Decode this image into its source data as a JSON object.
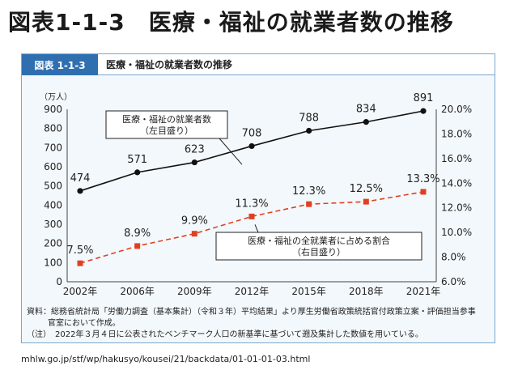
{
  "page_title": "図表1-1-3　医療・福祉の就業者数の推移",
  "figure": {
    "tag": "図表 1-1-3",
    "title": "医療・福祉の就業者数の推移"
  },
  "notes": {
    "source_line1": "資料：総務省統計局「労働力調査（基本集計）（令和３年）平均結果」より厚生労働省政策統括官付政策立案・評価担当参事",
    "source_line2": "官室において作成。",
    "note_line": "（注）　2022年３月４日に公表されたベンチマーク人口の新基準に基づいて遡及集計した数値を用いている。"
  },
  "url": "mhlw.go.jp/stf/wp/hakusyo/kousei/21/backdata/01-01-01-03.html",
  "colors": {
    "accent": "#2f6fb0",
    "series1": "#111111",
    "series2": "#e04020"
  },
  "chart_data": {
    "type": "line",
    "categories": [
      "2002年",
      "2006年",
      "2009年",
      "2012年",
      "2015年",
      "2018年",
      "2021年"
    ],
    "y_unit_label": "（万人）",
    "ylim_left": [
      0,
      900
    ],
    "yticks_left": [
      "0",
      "100",
      "200",
      "300",
      "400",
      "500",
      "600",
      "700",
      "800",
      "900"
    ],
    "ylim_right": [
      6.0,
      20.0
    ],
    "yticks_right": [
      "6.0%",
      "8.0%",
      "10.0%",
      "12.0%",
      "14.0%",
      "16.0%",
      "18.0%",
      "20.0%"
    ],
    "series": [
      {
        "name": "医療・福祉の就業者数",
        "name_line1": "医療・福祉の就業者数",
        "name_line2": "（左目盛り）",
        "axis": "left",
        "values": [
          474,
          571,
          623,
          708,
          788,
          834,
          891
        ],
        "labels": [
          "474",
          "571",
          "623",
          "708",
          "788",
          "834",
          "891"
        ]
      },
      {
        "name": "医療・福祉の全就業者に占める割合",
        "name_line1": "医療・福祉の全就業者に占める割合",
        "name_line2": "（右目盛り）",
        "axis": "right",
        "values": [
          7.5,
          8.9,
          9.9,
          11.3,
          12.3,
          12.5,
          13.3
        ],
        "labels": [
          "7.5%",
          "8.9%",
          "9.9%",
          "11.3%",
          "12.3%",
          "12.5%",
          "13.3%"
        ]
      }
    ]
  }
}
